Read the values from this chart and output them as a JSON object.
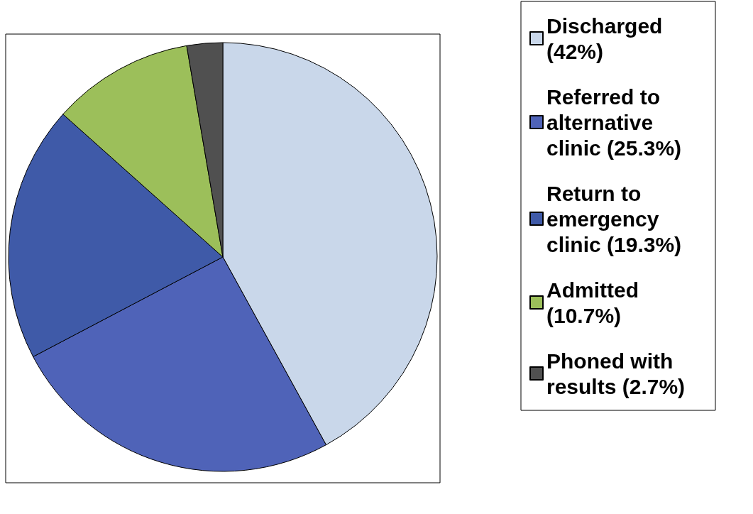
{
  "chart_data": {
    "type": "pie",
    "categories": [
      "Discharged (42%)",
      "Referred to alternative clinic (25.3%)",
      "Return to emergency clinic (19.3%)",
      "Admitted (10.7%)",
      "Phoned with results (2.7%)"
    ],
    "values": [
      42,
      25.3,
      19.3,
      10.7,
      2.7
    ],
    "colors": [
      "#c9d7ea",
      "#4f63b8",
      "#3f5aa8",
      "#9cbf5a",
      "#505050"
    ],
    "legend": "right"
  }
}
